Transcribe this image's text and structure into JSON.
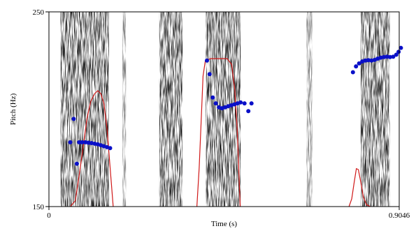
{
  "chart_data": {
    "type": "scatter",
    "xlabel": "Time (s)",
    "ylabel": "Pitch (Hz)",
    "xlim": [
      0,
      0.9046
    ],
    "ylim": [
      150,
      250
    ],
    "x_tick_labels": [
      "0",
      "0.9046"
    ],
    "y_tick_labels": [
      "150",
      "250"
    ],
    "grid": false,
    "background": "spectrogram",
    "colors": {
      "pitch_points": "#0a10c8",
      "contour": "#d01818",
      "frame": "#000000"
    },
    "series": [
      {
        "type": "scatter",
        "points": [
          [
            0.055,
            183
          ],
          [
            0.064,
            195
          ],
          [
            0.072,
            172
          ],
          [
            0.078,
            183
          ],
          [
            0.086,
            183
          ],
          [
            0.094,
            183
          ],
          [
            0.102,
            182.8
          ],
          [
            0.11,
            182.6
          ],
          [
            0.118,
            182.3
          ],
          [
            0.126,
            182.0
          ],
          [
            0.134,
            181.5
          ],
          [
            0.142,
            181.0
          ],
          [
            0.15,
            180.5
          ],
          [
            0.158,
            180.0
          ],
          [
            0.408,
            225
          ],
          [
            0.415,
            218
          ],
          [
            0.423,
            206
          ],
          [
            0.431,
            203
          ],
          [
            0.439,
            201
          ],
          [
            0.447,
            200.5
          ],
          [
            0.455,
            201
          ],
          [
            0.463,
            201.5
          ],
          [
            0.471,
            202
          ],
          [
            0.479,
            202.5
          ],
          [
            0.487,
            203
          ],
          [
            0.495,
            203.5
          ],
          [
            0.505,
            203
          ],
          [
            0.515,
            199
          ],
          [
            0.523,
            203
          ],
          [
            0.785,
            219
          ],
          [
            0.793,
            222
          ],
          [
            0.801,
            223.5
          ],
          [
            0.809,
            224.5
          ],
          [
            0.817,
            225
          ],
          [
            0.825,
            225.2
          ],
          [
            0.833,
            225
          ],
          [
            0.841,
            225.3
          ],
          [
            0.849,
            226
          ],
          [
            0.857,
            226.5
          ],
          [
            0.865,
            226.8
          ],
          [
            0.873,
            227
          ],
          [
            0.881,
            226.8
          ],
          [
            0.889,
            227
          ],
          [
            0.897,
            228
          ],
          [
            0.903,
            229.5
          ],
          [
            0.909,
            231.5
          ]
        ]
      },
      {
        "type": "line",
        "points": [
          [
            0.055,
            150
          ],
          [
            0.068,
            153
          ],
          [
            0.078,
            166
          ],
          [
            0.088,
            180
          ],
          [
            0.098,
            195
          ],
          [
            0.108,
            204
          ],
          [
            0.118,
            208
          ],
          [
            0.126,
            209.5
          ],
          [
            0.134,
            208
          ],
          [
            0.142,
            203
          ],
          [
            0.15,
            190
          ],
          [
            0.158,
            170
          ],
          [
            0.166,
            150
          ],
          null,
          [
            0.382,
            150
          ],
          [
            0.388,
            170
          ],
          [
            0.394,
            198
          ],
          [
            0.398,
            217
          ],
          [
            0.404,
            225
          ],
          [
            0.418,
            226
          ],
          [
            0.432,
            226
          ],
          [
            0.448,
            226
          ],
          [
            0.46,
            226
          ],
          [
            0.472,
            223
          ],
          [
            0.48,
            210
          ],
          [
            0.486,
            190
          ],
          [
            0.49,
            170
          ],
          [
            0.494,
            150
          ],
          null,
          [
            0.775,
            150
          ],
          [
            0.782,
            154
          ],
          [
            0.788,
            162
          ],
          [
            0.794,
            169.5
          ],
          [
            0.799,
            169
          ],
          [
            0.805,
            163
          ],
          [
            0.812,
            155
          ],
          [
            0.82,
            151
          ],
          [
            0.83,
            150
          ]
        ]
      }
    ]
  }
}
